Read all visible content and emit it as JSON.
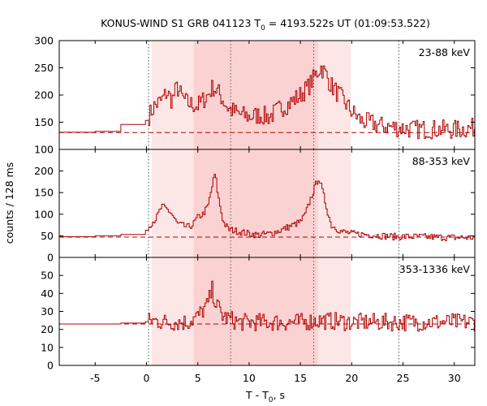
{
  "chart_data": {
    "type": "line",
    "style": "step",
    "title_prefix": "KONUS-WIND S1 GRB 041123 T",
    "title_sub": "0",
    "title_suffix": " = 4193.522s UT (01:09:53.522)",
    "xlabel_prefix": "T - T",
    "xlabel_sub": "0",
    "xlabel_suffix": ", s",
    "ylabel": "counts / 128 ms",
    "xlim": [
      -8.5,
      32
    ],
    "x_ticks": [
      -5,
      0,
      5,
      10,
      15,
      20,
      25,
      30
    ],
    "line_color": "#b00000",
    "shade_outer": {
      "range": [
        0.5,
        19.9
      ],
      "color": "#fde6e6"
    },
    "shade_inner": {
      "range": [
        4.6,
        16.7
      ],
      "color": "#fbd2d2"
    },
    "vlines": [
      0.2,
      8.2,
      16.3,
      24.6
    ],
    "panels": [
      {
        "label": "23-88 keV",
        "ylim": [
          100,
          300
        ],
        "y_ticks": [
          100,
          150,
          200,
          250,
          300
        ],
        "background": 131,
        "anchors": [
          [
            -8.5,
            130
          ],
          [
            -5,
            133
          ],
          [
            -2.5,
            133
          ],
          [
            -2.4,
            145
          ],
          [
            -0.1,
            147
          ],
          [
            0.2,
            160
          ],
          [
            0.8,
            180
          ],
          [
            1.5,
            190
          ],
          [
            2,
            205
          ],
          [
            2.5,
            190
          ],
          [
            3,
            215
          ],
          [
            3.5,
            195
          ],
          [
            4,
            185
          ],
          [
            5,
            180
          ],
          [
            6,
            200
          ],
          [
            6.5,
            215
          ],
          [
            7,
            205
          ],
          [
            7.5,
            190
          ],
          [
            8,
            175
          ],
          [
            9,
            165
          ],
          [
            10,
            160
          ],
          [
            11,
            163
          ],
          [
            12,
            160
          ],
          [
            13,
            175
          ],
          [
            14,
            185
          ],
          [
            15,
            200
          ],
          [
            15.8,
            215
          ],
          [
            16.6,
            240
          ],
          [
            17,
            252
          ],
          [
            17.5,
            238
          ],
          [
            18,
            218
          ],
          [
            19,
            195
          ],
          [
            20,
            170
          ],
          [
            21,
            152
          ],
          [
            22,
            148
          ],
          [
            23,
            143
          ],
          [
            24.5,
            140
          ],
          [
            26,
            137
          ],
          [
            28,
            137
          ],
          [
            30,
            136
          ],
          [
            32,
            140
          ]
        ],
        "noise": 18
      },
      {
        "label": "88-353 keV",
        "ylim": [
          0,
          250
        ],
        "y_ticks": [
          0,
          50,
          100,
          150,
          200
        ],
        "background": 47,
        "anchors": [
          [
            -8.5,
            46
          ],
          [
            -5,
            50
          ],
          [
            -2.5,
            50
          ],
          [
            -2.4,
            52
          ],
          [
            -0.1,
            54
          ],
          [
            0.2,
            72
          ],
          [
            1,
            92
          ],
          [
            1.5,
            118
          ],
          [
            2,
            112
          ],
          [
            2.5,
            100
          ],
          [
            3,
            78
          ],
          [
            4,
            70
          ],
          [
            4.5,
            75
          ],
          [
            5,
            92
          ],
          [
            5.5,
            100
          ],
          [
            6,
            118
          ],
          [
            6.5,
            175
          ],
          [
            6.7,
            195
          ],
          [
            7,
            140
          ],
          [
            7.5,
            82
          ],
          [
            8,
            65
          ],
          [
            9,
            60
          ],
          [
            10,
            55
          ],
          [
            11,
            52
          ],
          [
            12,
            55
          ],
          [
            13,
            62
          ],
          [
            14,
            72
          ],
          [
            15,
            82
          ],
          [
            15.5,
            100
          ],
          [
            16,
            135
          ],
          [
            16.5,
            168
          ],
          [
            16.8,
            185
          ],
          [
            17.2,
            150
          ],
          [
            17.6,
            112
          ],
          [
            18,
            75
          ],
          [
            19,
            60
          ],
          [
            20,
            55
          ],
          [
            22,
            52
          ],
          [
            24,
            48
          ],
          [
            26,
            48
          ],
          [
            28,
            47
          ],
          [
            30,
            46
          ],
          [
            32,
            46
          ]
        ],
        "noise": 8
      },
      {
        "label": "353-1336 keV",
        "ylim": [
          0,
          60
        ],
        "y_ticks": [
          0,
          10,
          20,
          30,
          40,
          50
        ],
        "background": 23,
        "anchors": [
          [
            -8.5,
            23
          ],
          [
            -5,
            23
          ],
          [
            -2.5,
            23
          ],
          [
            -0.1,
            24
          ],
          [
            0.5,
            25
          ],
          [
            2,
            24
          ],
          [
            4,
            24
          ],
          [
            5,
            27
          ],
          [
            6,
            34
          ],
          [
            6.4,
            42
          ],
          [
            6.8,
            34
          ],
          [
            7.5,
            27
          ],
          [
            9,
            24
          ],
          [
            12,
            24
          ],
          [
            15,
            24
          ],
          [
            17,
            25
          ],
          [
            20,
            24
          ],
          [
            24,
            24
          ],
          [
            28,
            24
          ],
          [
            32,
            24
          ]
        ],
        "noise": 5
      }
    ]
  }
}
